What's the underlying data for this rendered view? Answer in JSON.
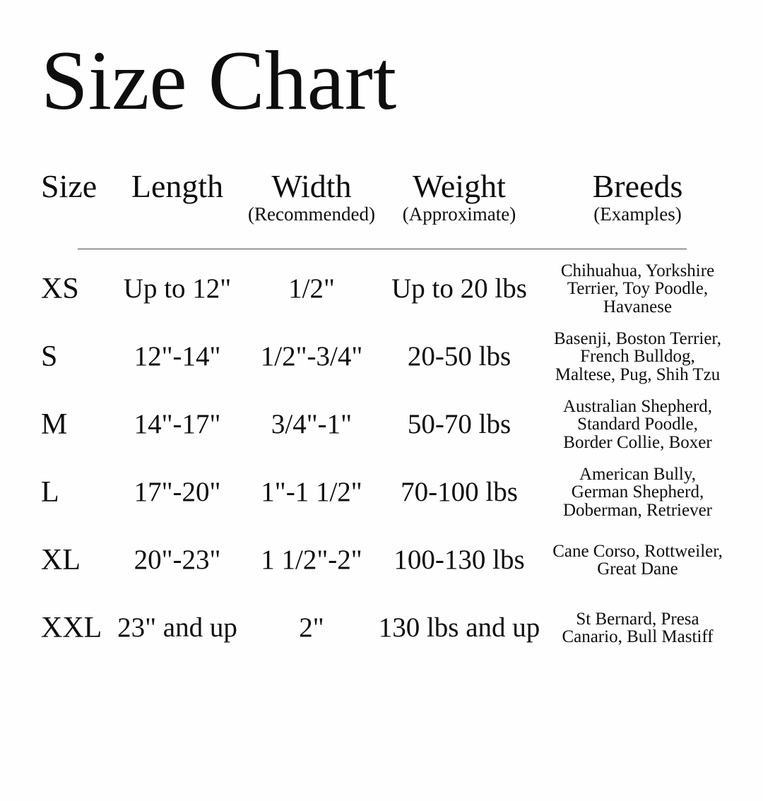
{
  "chart_data": {
    "type": "table",
    "title": "Size Chart",
    "columns": [
      {
        "label": "Size",
        "sublabel": ""
      },
      {
        "label": "Length",
        "sublabel": ""
      },
      {
        "label": "Width",
        "sublabel": "(Recommended)"
      },
      {
        "label": "Weight",
        "sublabel": "(Approximate)"
      },
      {
        "label": "Breeds",
        "sublabel": "(Examples)"
      }
    ],
    "rows": [
      {
        "size": "XS",
        "length": "Up to 12\"",
        "width": "1/2\"",
        "weight": "Up to 20 lbs",
        "breeds_lines": [
          "Chihuahua, Yorkshire",
          "Terrier, Toy Poodle,",
          "Havanese"
        ]
      },
      {
        "size": "S",
        "length": "12\"-14\"",
        "width": "1/2\"-3/4\"",
        "weight": "20-50 lbs",
        "breeds_lines": [
          "Basenji, Boston Terrier,",
          "French Bulldog,",
          "Maltese, Pug, Shih Tzu"
        ]
      },
      {
        "size": "M",
        "length": "14\"-17\"",
        "width": "3/4\"-1\"",
        "weight": "50-70 lbs",
        "breeds_lines": [
          "Australian Shepherd,",
          "Standard Poodle,",
          "Border Collie, Boxer"
        ]
      },
      {
        "size": "L",
        "length": "17\"-20\"",
        "width": "1\"-1 1/2\"",
        "weight": "70-100 lbs",
        "breeds_lines": [
          "American Bully,",
          "German Shepherd,",
          "Doberman, Retriever"
        ]
      },
      {
        "size": "XL",
        "length": "20\"-23\"",
        "width": "1 1/2\"-2\"",
        "weight": "100-130 lbs",
        "breeds_lines": [
          "Cane Corso, Rottweiler,",
          "Great Dane"
        ]
      },
      {
        "size": "XXL",
        "length": "23\" and up",
        "width": "2\"",
        "weight": "130 lbs and up",
        "breeds_lines": [
          "St Bernard, Presa",
          "Canario, Bull Mastiff"
        ]
      }
    ],
    "layout": {
      "grid": "off",
      "header_divider": true
    }
  },
  "colors": {
    "background": "#fefefe",
    "text": "#0e0e0e",
    "divider": "#4a4a4a"
  }
}
